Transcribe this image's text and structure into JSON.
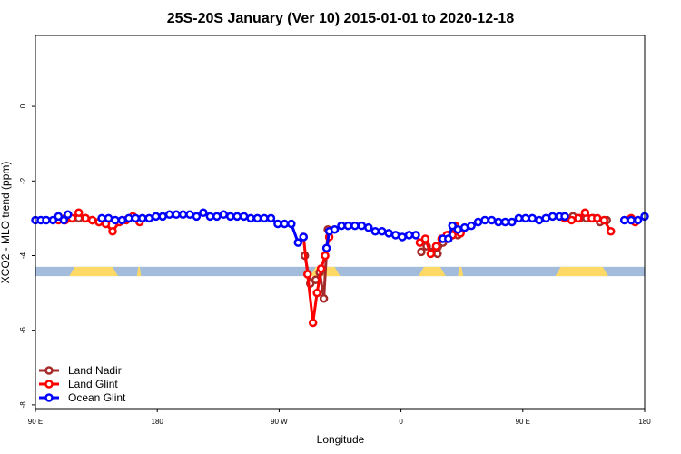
{
  "chart_data": {
    "type": "line",
    "title": "25S-20S January (Ver 10)   2015-01-01 to 2020-12-18",
    "xlabel": "Longitude",
    "ylabel": "XCO2 - MLO trend (ppm)",
    "xlim": [
      -90,
      360
    ],
    "ylim": [
      -8.1,
      1.9
    ],
    "x_ticks": [
      {
        "value": -90,
        "label": "90 E"
      },
      {
        "value": 0,
        "label": "180"
      },
      {
        "value": 90,
        "label": "90 W"
      },
      {
        "value": 180,
        "label": "0"
      },
      {
        "value": 270,
        "label": "90 E"
      },
      {
        "value": 360,
        "label": "180"
      }
    ],
    "y_ticks": [
      {
        "value": 0,
        "label": "0"
      },
      {
        "value": -2,
        "label": "-2"
      },
      {
        "value": -4,
        "label": "-4"
      },
      {
        "value": -6,
        "label": "-6"
      },
      {
        "value": -8,
        "label": "-8"
      }
    ],
    "grid": false,
    "legend_position": "bottom-left",
    "land_mask_band": {
      "y_range": [
        -4.55,
        -4.3
      ],
      "ocean_color": "#a4bcdc",
      "land_color": "#ffd966",
      "land_segments": [
        [
          -65,
          -29
        ],
        [
          -15,
          -12
        ],
        [
          113,
          135
        ],
        [
          193,
          213
        ],
        [
          222,
          226
        ],
        [
          294,
          333
        ]
      ]
    },
    "series": [
      {
        "name": "Land Nadir",
        "color": "#a52a2a",
        "x": [
          -68,
          -63,
          -58,
          -53,
          -48,
          -43,
          -38,
          109,
          113,
          117,
          120,
          123,
          126,
          195,
          199,
          203,
          207,
          211,
          215,
          218,
          222,
          307,
          312,
          317,
          322,
          327,
          332
        ],
        "y": [
          -3.0,
          -3.0,
          -3.0,
          -3.0,
          -3.05,
          -3.1,
          -3.05,
          -4.0,
          -4.75,
          -4.65,
          -4.45,
          -5.15,
          -3.3,
          -3.9,
          -3.75,
          -3.9,
          -3.95,
          -3.65,
          -3.45,
          -3.45,
          -3.45,
          -2.95,
          -3.0,
          -3.0,
          -3.0,
          -3.1,
          -3.05
        ]
      },
      {
        "name": "Land Glint",
        "color": "#ff0000",
        "x": [
          -73,
          -68,
          -63,
          -58,
          -53,
          -48,
          -43,
          -38,
          -33,
          -28,
          -23,
          -18,
          -13,
          108,
          111,
          115,
          118,
          121,
          124,
          127,
          194,
          198,
          202,
          206,
          210,
          214,
          218,
          220,
          224,
          301,
          306,
          311,
          316,
          321,
          325,
          330,
          335,
          350,
          353
        ],
        "y": [
          -3.05,
          -3.05,
          -3.0,
          -2.85,
          -3.0,
          -3.05,
          -3.1,
          -3.15,
          -3.35,
          -3.1,
          -3.05,
          -2.95,
          -3.1,
          -3.5,
          -4.5,
          -5.8,
          -5.0,
          -4.35,
          -4.0,
          -3.5,
          -3.65,
          -3.55,
          -3.95,
          -3.75,
          -3.55,
          -3.45,
          -3.45,
          -3.2,
          -3.4,
          -3.0,
          -3.05,
          -3.0,
          -2.85,
          -3.0,
          -3.0,
          -3.05,
          -3.35,
          -3.0,
          -3.1
        ]
      },
      {
        "name": "Ocean Glint",
        "color": "#0000ff",
        "x": [
          -90,
          -86,
          -82,
          -77,
          -73,
          -69,
          -66,
          -41,
          -36,
          -31,
          -26,
          -21,
          -16,
          -11,
          -6,
          -1,
          4,
          9,
          14,
          19,
          24,
          29,
          34,
          39,
          44,
          49,
          54,
          59,
          64,
          69,
          74,
          79,
          84,
          89,
          94,
          99,
          104,
          108,
          125,
          127,
          131,
          136,
          141,
          146,
          151,
          156,
          161,
          166,
          171,
          176,
          181,
          186,
          191,
          211,
          215,
          218,
          222,
          227,
          232,
          237,
          242,
          247,
          252,
          257,
          262,
          267,
          272,
          277,
          282,
          287,
          292,
          297,
          301,
          345,
          350,
          355,
          360
        ],
        "y": [
          -3.05,
          -3.05,
          -3.05,
          -3.05,
          -2.95,
          -3.05,
          -2.9,
          -3.0,
          -3.0,
          -3.05,
          -3.05,
          -3.0,
          -3.0,
          -3.0,
          -3.0,
          -2.95,
          -2.95,
          -2.9,
          -2.9,
          -2.9,
          -2.9,
          -2.95,
          -2.85,
          -2.95,
          -2.95,
          -2.9,
          -2.95,
          -2.95,
          -2.95,
          -3.0,
          -3.0,
          -3.0,
          -3.0,
          -3.15,
          -3.15,
          -3.15,
          -3.65,
          -3.5,
          -3.8,
          -3.35,
          -3.3,
          -3.2,
          -3.2,
          -3.2,
          -3.2,
          -3.25,
          -3.35,
          -3.35,
          -3.4,
          -3.45,
          -3.5,
          -3.45,
          -3.45,
          -3.55,
          -3.55,
          -3.2,
          -3.3,
          -3.25,
          -3.2,
          -3.1,
          -3.05,
          -3.05,
          -3.1,
          -3.1,
          -3.1,
          -3.0,
          -3.0,
          -3.0,
          -3.05,
          -3.0,
          -2.95,
          -2.95,
          -2.95,
          -3.05,
          -3.05,
          -3.05,
          -2.95
        ]
      }
    ]
  }
}
